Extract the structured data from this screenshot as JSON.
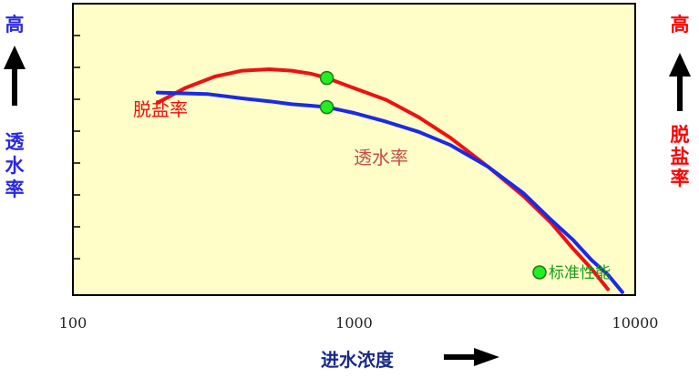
{
  "chart_data": {
    "type": "line",
    "title": "",
    "xlabel": "进水浓度",
    "xscale": "log",
    "xlim": [
      100,
      10000
    ],
    "xticks": [
      {
        "value": 100,
        "label": "100"
      },
      {
        "value": 1000,
        "label": "1000"
      },
      {
        "value": 10000,
        "label": "10000"
      }
    ],
    "ylim": [
      0,
      10
    ],
    "y_minor_ticks": 8,
    "left_axis": {
      "label": "透水率",
      "top_label": "高",
      "color": "#2a2ae0"
    },
    "right_axis": {
      "label": "脱盐率",
      "top_label": "高",
      "color": "#ff0000"
    },
    "series": [
      {
        "name": "脱盐率",
        "color": "#ee1111",
        "x": [
          200,
          250,
          320,
          400,
          500,
          600,
          700,
          800,
          1000,
          1300,
          1700,
          2200,
          3000,
          4000,
          5000,
          6000,
          7000,
          8000
        ],
        "y": [
          6.6,
          7.1,
          7.5,
          7.7,
          7.75,
          7.7,
          7.6,
          7.45,
          7.1,
          6.7,
          6.1,
          5.4,
          4.4,
          3.4,
          2.5,
          1.6,
          0.9,
          0.2
        ]
      },
      {
        "name": "透水率",
        "color": "#1a2ae8",
        "x": [
          200,
          300,
          400,
          500,
          600,
          700,
          800,
          1000,
          1300,
          1700,
          2200,
          3000,
          4000,
          5000,
          6000,
          7000,
          8000,
          9000
        ],
        "y": [
          6.95,
          6.9,
          6.75,
          6.65,
          6.55,
          6.5,
          6.45,
          6.25,
          5.95,
          5.6,
          5.15,
          4.4,
          3.5,
          2.6,
          1.9,
          1.2,
          0.7,
          0.1
        ]
      }
    ],
    "standard_points": [
      {
        "x": 800,
        "y": 7.45
      },
      {
        "x": 800,
        "y": 6.45
      }
    ],
    "annotations": [
      {
        "text": "脱盐率",
        "color": "#ee1111"
      },
      {
        "text": "透水率",
        "color": "#c0504d"
      }
    ],
    "legend": {
      "label": "标准性能",
      "color": "#22ee22",
      "placement": "bottom-right"
    },
    "grid": false,
    "background": "#fffdc8"
  }
}
